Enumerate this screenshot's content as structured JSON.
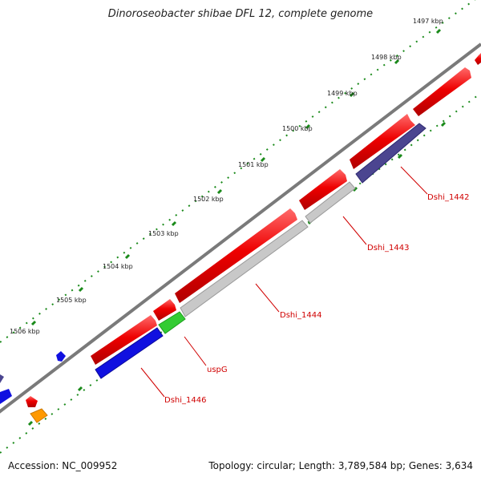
{
  "title": "Dinoroseobacter shibae DFL 12, complete genome",
  "footer": {
    "accession": "Accession: NC_009952",
    "stats": "Topology: circular; Length: 3,789,584 bp; Genes: 3,634"
  },
  "kbp_labels": [
    "1497 kbp",
    "1498 kbp",
    "1499 kbp",
    "1500 kbp",
    "1501 kbp",
    "1502 kbp",
    "1503 kbp",
    "1504 kbp",
    "1505 kbp",
    "1506 kbp"
  ],
  "gene_labels": [
    "Dshi_1442",
    "Dshi_1443",
    "Dshi_1444",
    "uspG",
    "Dshi_1446"
  ],
  "colors": {
    "backbone": "#808080",
    "forward_cds": "#ee0000",
    "reverse_blue": "#1010e0",
    "reverse_purple": "#4b4590",
    "reverse_grey": "#c8c8c8",
    "usp_green": "#33cc33",
    "orange": "#ff9900",
    "tick": "#1a8a1a",
    "label": "#dd0000"
  }
}
